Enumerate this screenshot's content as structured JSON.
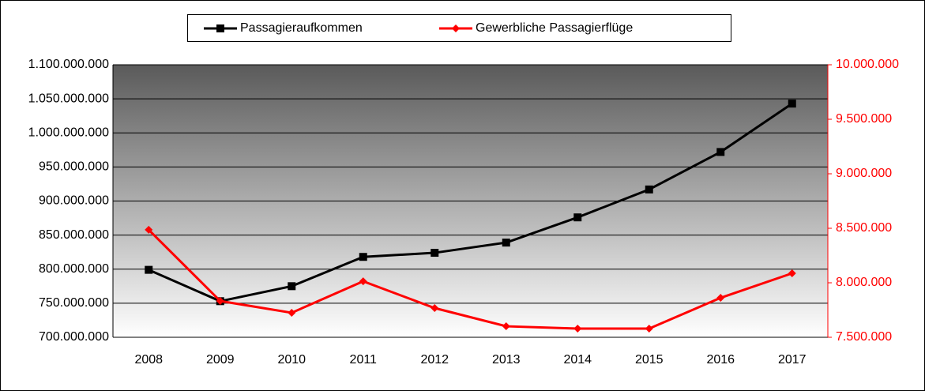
{
  "chart_data": {
    "type": "line",
    "categories": [
      "2008",
      "2009",
      "2010",
      "2011",
      "2012",
      "2013",
      "2014",
      "2015",
      "2016",
      "2017"
    ],
    "series": [
      {
        "name": "Passagieraufkommen",
        "color": "#000000",
        "marker": "square",
        "values": [
          799000000,
          753000000,
          775000000,
          818000000,
          824000000,
          839000000,
          876000000,
          917000000,
          972000000,
          1043000000
        ]
      },
      {
        "name": "Gewerbliche Passagierflüge",
        "color": "#ff0000",
        "marker": "diamond",
        "axis": "y2",
        "values": [
          8486000,
          7833000,
          7725000,
          8014000,
          7768000,
          7601000,
          7580000,
          7580000,
          7862000,
          8087000
        ]
      }
    ],
    "ylim": [
      700000000,
      1100000000
    ],
    "yticks": [
      {
        "value": 700000000,
        "label": "700.000.000"
      },
      {
        "value": 750000000,
        "label": "750.000.000"
      },
      {
        "value": 800000000,
        "label": "800.000.000"
      },
      {
        "value": 850000000,
        "label": "850.000.000"
      },
      {
        "value": 900000000,
        "label": "900.000.000"
      },
      {
        "value": 950000000,
        "label": "950.000.000"
      },
      {
        "value": 1000000000,
        "label": "1.000.000.000"
      },
      {
        "value": 1050000000,
        "label": "1.050.000.000"
      },
      {
        "value": 1100000000,
        "label": "1.100.000.000"
      }
    ],
    "y2lim": [
      7500000,
      10000000
    ],
    "y2ticks": [
      {
        "value": 7500000,
        "label": "7.500.000"
      },
      {
        "value": 8000000,
        "label": "8.000.000"
      },
      {
        "value": 8500000,
        "label": "8.500.000"
      },
      {
        "value": 9000000,
        "label": "9.000.000"
      },
      {
        "value": 9500000,
        "label": "9.500.000"
      },
      {
        "value": 10000000,
        "label": "10.000.000"
      }
    ],
    "y2color": "#ff0000",
    "grid": true,
    "legend": "top"
  }
}
